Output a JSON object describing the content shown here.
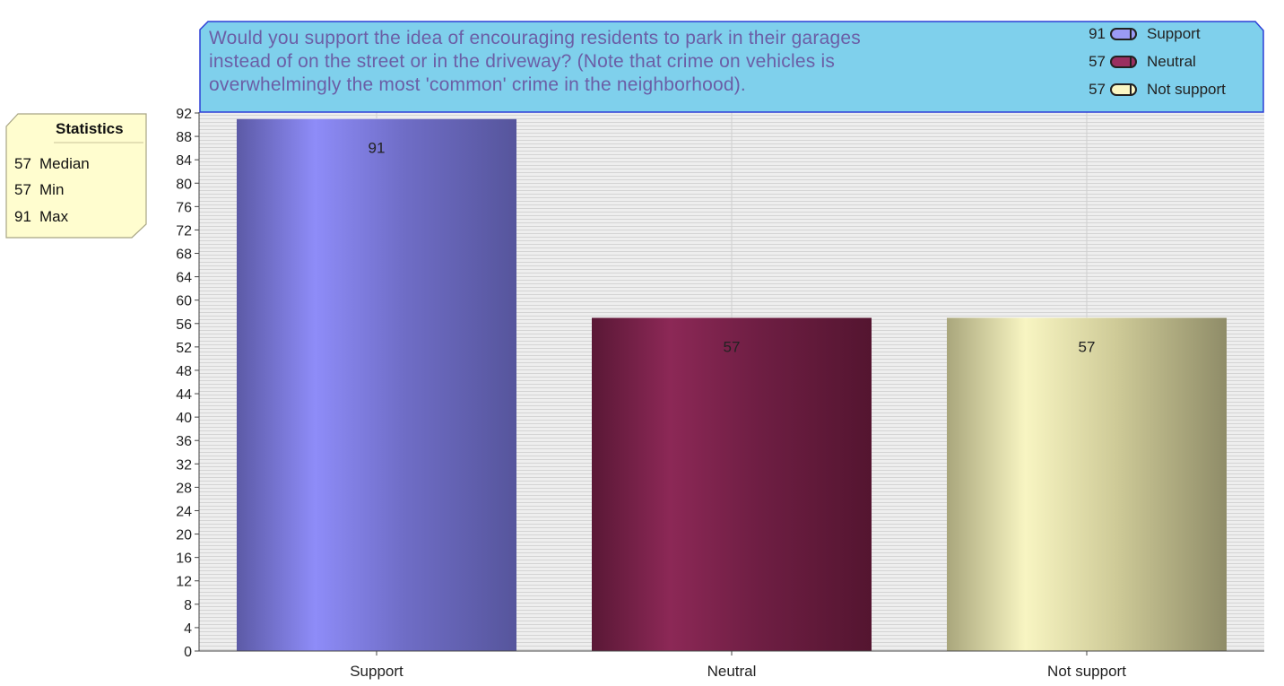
{
  "chart_data": {
    "type": "bar",
    "title": "Would you support the idea of encouraging residents to park in their garages\ninstead of on the street or in the driveway?  (Note that crime on vehicles is\noverwhelmingly the most 'common' crime in the neighborhood).",
    "categories": [
      "Support",
      "Neutral",
      "Not support"
    ],
    "values": [
      91,
      57,
      57
    ],
    "data_labels": [
      "91",
      "57",
      "57"
    ],
    "colors": [
      "#8b8bf2",
      "#8a2752",
      "#f7f4c0"
    ],
    "ylim": [
      0,
      92
    ],
    "ytick_step": 4,
    "grid": true,
    "legend": {
      "placement": "top-right",
      "entries": [
        {
          "value": "91",
          "label": "Support",
          "color": "#9b9bf5"
        },
        {
          "value": "57",
          "label": "Neutral",
          "color": "#9a2f60"
        },
        {
          "value": "57",
          "label": "Not support",
          "color": "#fbf7c4"
        }
      ]
    }
  },
  "statistics": {
    "title": "Statistics",
    "rows": [
      {
        "value": "57",
        "label": "Median"
      },
      {
        "value": "57",
        "label": "Min"
      },
      {
        "value": "91",
        "label": "Max"
      }
    ]
  }
}
